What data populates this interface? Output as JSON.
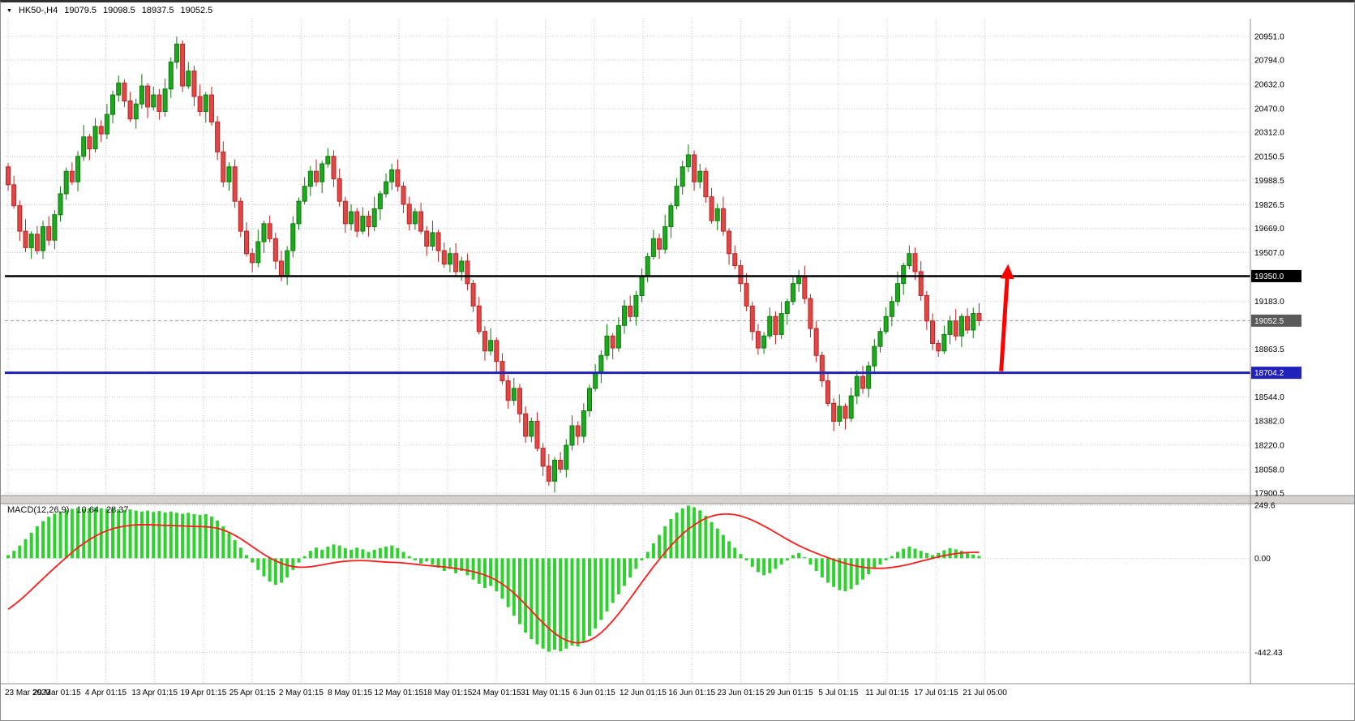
{
  "window": {
    "symbol_period": "HK50-,H4",
    "open": "19079.5",
    "high": "19098.5",
    "low": "18937.5",
    "close": "19052.5",
    "menu_icon": "▼"
  },
  "colors": {
    "background": "#ffffff",
    "grid": "#c6c6c6",
    "text": "#000000",
    "candle_up": "#1ea81e",
    "candle_up_border": "#0b7a0b",
    "candle_down": "#e04848",
    "candle_down_border": "#c02020",
    "histogram": "#2fd12f",
    "signal": "#ff1a1a",
    "divider": "#d6d3ce",
    "frame_line": "#8f8f8f",
    "arrow": "#ff0000"
  },
  "chart_data": [
    {
      "type": "candlestick",
      "title": "HK50-,H4",
      "ylim": [
        17884,
        21070
      ],
      "y_tick_labels": [
        "20951.0",
        "20794.0",
        "20632.0",
        "20470.0",
        "20312.0",
        "20150.5",
        "19988.5",
        "19826.5",
        "19669.0",
        "19507.0",
        "19183.0",
        "18863.5",
        "18544.0",
        "18382.0",
        "18220.0",
        "18058.0",
        "17900.5"
      ],
      "x_labels": [
        "23 Mar 2023",
        "29 Mar 01:15",
        "4 Apr 01:15",
        "13 Apr 01:15",
        "19 Apr 01:15",
        "25 Apr 01:15",
        "2 May 01:15",
        "8 May 01:15",
        "12 May 01:15",
        "18 May 01:15",
        "24 May 01:15",
        "31 May 01:15",
        "6 Jun 01:15",
        "12 Jun 01:15",
        "16 Jun 01:15",
        "23 Jun 01:15",
        "29 Jun 01:15",
        "5 Jul 01:15",
        "11 Jul 01:15",
        "17 Jul 01:15",
        "21 Jul 05:00"
      ],
      "candles_per_label": 8.4,
      "first_open": 20080,
      "closes": [
        19960,
        19820,
        19650,
        19540,
        19630,
        19520,
        19680,
        19590,
        19760,
        19900,
        20050,
        19980,
        20150,
        20280,
        20200,
        20350,
        20300,
        20430,
        20560,
        20640,
        20520,
        20400,
        20500,
        20620,
        20480,
        20560,
        20450,
        20600,
        20780,
        20900,
        20620,
        20720,
        20550,
        20450,
        20560,
        20380,
        20180,
        19980,
        20080,
        19850,
        19650,
        19500,
        19440,
        19580,
        19700,
        19600,
        19450,
        19350,
        19520,
        19700,
        19850,
        19950,
        20050,
        19980,
        20100,
        20150,
        20000,
        19850,
        19700,
        19780,
        19650,
        19750,
        19680,
        19800,
        19900,
        19980,
        20060,
        19950,
        19830,
        19700,
        19780,
        19650,
        19550,
        19640,
        19520,
        19430,
        19500,
        19380,
        19450,
        19300,
        19150,
        18980,
        18850,
        18920,
        18780,
        18650,
        18520,
        18600,
        18430,
        18280,
        18380,
        18200,
        18080,
        17980,
        18120,
        18060,
        18220,
        18350,
        18280,
        18450,
        18600,
        18700,
        18820,
        18950,
        18870,
        19020,
        19150,
        19080,
        19220,
        19350,
        19480,
        19600,
        19530,
        19680,
        19820,
        19950,
        20080,
        20160,
        19980,
        20050,
        19880,
        19720,
        19800,
        19650,
        19500,
        19420,
        19300,
        19150,
        18980,
        18870,
        18950,
        19080,
        18960,
        19100,
        19180,
        19300,
        19350,
        19200,
        19000,
        18820,
        18650,
        18500,
        18380,
        18480,
        18400,
        18550,
        18680,
        18600,
        18750,
        18880,
        18980,
        19080,
        19180,
        19300,
        19420,
        19500,
        19380,
        19220,
        19050,
        18900,
        18850,
        18960,
        19050,
        18950,
        19080,
        18990,
        19100,
        19052.5
      ],
      "wick_high_pattern": [
        25,
        60,
        35,
        80,
        20,
        55,
        40,
        70,
        30,
        50
      ],
      "wick_low_pattern": [
        40,
        20,
        65,
        30,
        75,
        25,
        55,
        35,
        60,
        45
      ],
      "levels": [
        {
          "name": "bid-price-line",
          "label": "19052.5",
          "value": 19052.5,
          "color": "#9a9a9a",
          "badge_color": "#5a5a5a",
          "style": "dashed",
          "width": 1,
          "role": "bid"
        },
        {
          "name": "resistance-line",
          "label": "19350.0",
          "value": 19350.0,
          "color": "#000000",
          "badge_color": "#000000",
          "style": "solid",
          "width": 2.5,
          "role": "drawn"
        },
        {
          "name": "support-line",
          "label": "18704.2",
          "value": 18704.2,
          "color": "#2121bb",
          "badge_color": "#2121bb",
          "style": "solid",
          "width": 3,
          "role": "drawn"
        }
      ],
      "annotations": [
        {
          "type": "arrow",
          "from": {
            "x_index": 170.8,
            "price": 18715
          },
          "to": {
            "x_index": 172.0,
            "price": 19430
          },
          "color": "#ff0000"
        }
      ]
    },
    {
      "type": "macd",
      "label": "MACD(12,26,9)",
      "main_value": "10.64",
      "signal_value": "28.37",
      "ylim": [
        -590,
        257
      ],
      "y_tick_labels": [
        "249.6",
        "0.00",
        "-442.43"
      ],
      "histogram": [
        15,
        35,
        60,
        90,
        120,
        150,
        175,
        195,
        210,
        220,
        228,
        232,
        236,
        232,
        236,
        240,
        236,
        232,
        236,
        230,
        226,
        230,
        224,
        220,
        224,
        218,
        222,
        216,
        220,
        214,
        210,
        214,
        208,
        204,
        208,
        196,
        178,
        150,
        118,
        85,
        50,
        15,
        -20,
        -55,
        -85,
        -110,
        -125,
        -115,
        -90,
        -55,
        -20,
        10,
        35,
        50,
        40,
        55,
        65,
        60,
        48,
        40,
        50,
        42,
        30,
        40,
        48,
        55,
        60,
        48,
        30,
        10,
        -10,
        -25,
        -15,
        -30,
        -45,
        -60,
        -50,
        -70,
        -60,
        -80,
        -100,
        -120,
        -140,
        -130,
        -155,
        -190,
        -230,
        -270,
        -310,
        -350,
        -380,
        -405,
        -425,
        -440,
        -430,
        -438,
        -425,
        -410,
        -415,
        -395,
        -365,
        -330,
        -290,
        -250,
        -210,
        -170,
        -130,
        -90,
        -50,
        -10,
        30,
        70,
        110,
        150,
        185,
        215,
        235,
        248,
        240,
        225,
        200,
        170,
        140,
        110,
        80,
        50,
        20,
        -10,
        -40,
        -65,
        -80,
        -70,
        -50,
        -30,
        -10,
        15,
        25,
        5,
        -30,
        -60,
        -90,
        -115,
        -135,
        -150,
        -155,
        -145,
        -125,
        -100,
        -75,
        -50,
        -30,
        -10,
        10,
        30,
        45,
        55,
        45,
        35,
        25,
        15,
        25,
        38,
        48,
        42,
        35,
        25,
        18,
        10.64
      ],
      "signal": [
        -240,
        -220,
        -198,
        -174,
        -148,
        -122,
        -96,
        -70,
        -45,
        -20,
        4,
        28,
        50,
        70,
        88,
        104,
        118,
        130,
        139,
        146,
        151,
        155,
        157,
        158,
        158,
        157,
        156,
        155,
        154,
        153,
        152,
        151,
        150,
        149,
        148,
        146,
        141,
        133,
        122,
        108,
        92,
        74,
        55,
        36,
        18,
        2,
        -12,
        -24,
        -33,
        -39,
        -42,
        -42,
        -40,
        -36,
        -31,
        -26,
        -21,
        -17,
        -14,
        -12,
        -11,
        -11,
        -12,
        -14,
        -16,
        -18,
        -19,
        -20,
        -22,
        -25,
        -28,
        -31,
        -34,
        -36,
        -38,
        -41,
        -44,
        -48,
        -52,
        -57,
        -63,
        -70,
        -79,
        -90,
        -104,
        -121,
        -141,
        -164,
        -190,
        -218,
        -247,
        -276,
        -304,
        -330,
        -353,
        -372,
        -386,
        -395,
        -398,
        -395,
        -386,
        -371,
        -350,
        -324,
        -294,
        -261,
        -226,
        -189,
        -151,
        -113,
        -76,
        -40,
        -5,
        28,
        59,
        88,
        114,
        137,
        157,
        174,
        188,
        198,
        205,
        208,
        208,
        205,
        199,
        190,
        179,
        166,
        152,
        137,
        121,
        105,
        89,
        74,
        60,
        47,
        35,
        24,
        13,
        3,
        -7,
        -16,
        -24,
        -31,
        -37,
        -42,
        -45,
        -47,
        -47,
        -46,
        -43,
        -39,
        -34,
        -28,
        -21,
        -14,
        -7,
        0,
        7,
        13,
        18,
        22,
        25,
        27,
        28,
        28.37
      ]
    }
  ]
}
